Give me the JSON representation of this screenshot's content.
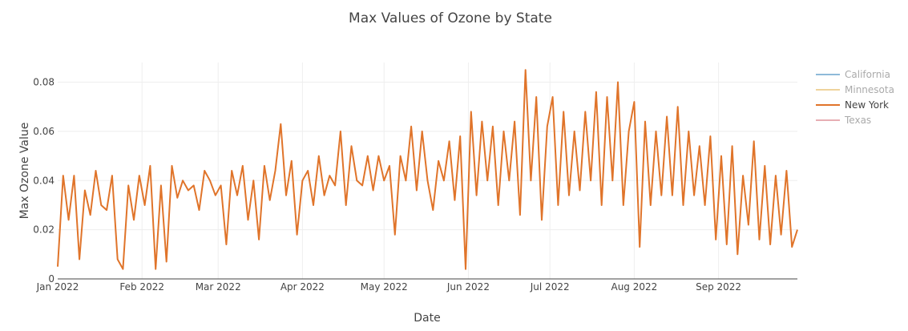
{
  "chart_data": {
    "type": "line",
    "title": "Max Values of Ozone by State",
    "xlabel": "Date",
    "ylabel": "Max Ozone Value",
    "xlim": [
      "2022-01-01",
      "2022-09-30"
    ],
    "ylim": [
      0,
      0.088
    ],
    "x_ticks": [
      {
        "date": "2022-01-01",
        "label": "Jan 2022"
      },
      {
        "date": "2022-02-01",
        "label": "Feb 2022"
      },
      {
        "date": "2022-03-01",
        "label": "Mar 2022"
      },
      {
        "date": "2022-04-01",
        "label": "Apr 2022"
      },
      {
        "date": "2022-05-01",
        "label": "May 2022"
      },
      {
        "date": "2022-06-01",
        "label": "Jun 2022"
      },
      {
        "date": "2022-07-01",
        "label": "Jul 2022"
      },
      {
        "date": "2022-08-01",
        "label": "Aug 2022"
      },
      {
        "date": "2022-09-01",
        "label": "Sep 2022"
      }
    ],
    "y_ticks": [
      {
        "value": 0,
        "label": "0"
      },
      {
        "value": 0.02,
        "label": "0.02"
      },
      {
        "value": 0.04,
        "label": "0.04"
      },
      {
        "value": 0.06,
        "label": "0.06"
      },
      {
        "value": 0.08,
        "label": "0.08"
      }
    ],
    "grid": true,
    "legend_position": "top-right",
    "series": [
      {
        "name": "California",
        "color": "#1f77b4",
        "visible": false,
        "x": [],
        "y": []
      },
      {
        "name": "Minnesota",
        "color": "#e0a93a",
        "visible": false,
        "x": [],
        "y": []
      },
      {
        "name": "New York",
        "color": "#e0742a",
        "visible": true,
        "x": [
          "2022-01-01",
          "2022-01-03",
          "2022-01-05",
          "2022-01-07",
          "2022-01-09",
          "2022-01-11",
          "2022-01-13",
          "2022-01-15",
          "2022-01-17",
          "2022-01-19",
          "2022-01-21",
          "2022-01-23",
          "2022-01-25",
          "2022-01-27",
          "2022-01-29",
          "2022-01-31",
          "2022-02-02",
          "2022-02-04",
          "2022-02-06",
          "2022-02-08",
          "2022-02-10",
          "2022-02-12",
          "2022-02-14",
          "2022-02-16",
          "2022-02-18",
          "2022-02-20",
          "2022-02-22",
          "2022-02-24",
          "2022-02-26",
          "2022-02-28",
          "2022-03-02",
          "2022-03-04",
          "2022-03-06",
          "2022-03-08",
          "2022-03-10",
          "2022-03-12",
          "2022-03-14",
          "2022-03-16",
          "2022-03-18",
          "2022-03-20",
          "2022-03-22",
          "2022-03-24",
          "2022-03-26",
          "2022-03-28",
          "2022-03-30",
          "2022-04-01",
          "2022-04-03",
          "2022-04-05",
          "2022-04-07",
          "2022-04-09",
          "2022-04-11",
          "2022-04-13",
          "2022-04-15",
          "2022-04-17",
          "2022-04-19",
          "2022-04-21",
          "2022-04-23",
          "2022-04-25",
          "2022-04-27",
          "2022-04-29",
          "2022-05-01",
          "2022-05-03",
          "2022-05-05",
          "2022-05-07",
          "2022-05-09",
          "2022-05-11",
          "2022-05-13",
          "2022-05-15",
          "2022-05-17",
          "2022-05-19",
          "2022-05-21",
          "2022-05-23",
          "2022-05-25",
          "2022-05-27",
          "2022-05-29",
          "2022-05-31",
          "2022-06-02",
          "2022-06-04",
          "2022-06-06",
          "2022-06-08",
          "2022-06-10",
          "2022-06-12",
          "2022-06-14",
          "2022-06-16",
          "2022-06-18",
          "2022-06-20",
          "2022-06-22",
          "2022-06-24",
          "2022-06-26",
          "2022-06-28",
          "2022-06-30",
          "2022-07-02",
          "2022-07-04",
          "2022-07-06",
          "2022-07-08",
          "2022-07-10",
          "2022-07-12",
          "2022-07-14",
          "2022-07-16",
          "2022-07-18",
          "2022-07-20",
          "2022-07-22",
          "2022-07-24",
          "2022-07-26",
          "2022-07-28",
          "2022-07-30",
          "2022-08-01",
          "2022-08-03",
          "2022-08-05",
          "2022-08-07",
          "2022-08-09",
          "2022-08-11",
          "2022-08-13",
          "2022-08-15",
          "2022-08-17",
          "2022-08-19",
          "2022-08-21",
          "2022-08-23",
          "2022-08-25",
          "2022-08-27",
          "2022-08-29",
          "2022-08-31",
          "2022-09-02",
          "2022-09-04",
          "2022-09-06",
          "2022-09-08",
          "2022-09-10",
          "2022-09-12",
          "2022-09-14",
          "2022-09-16",
          "2022-09-18",
          "2022-09-20",
          "2022-09-22",
          "2022-09-24",
          "2022-09-26",
          "2022-09-28",
          "2022-09-30"
        ],
        "y": [
          0.005,
          0.042,
          0.024,
          0.042,
          0.008,
          0.036,
          0.026,
          0.044,
          0.03,
          0.028,
          0.042,
          0.008,
          0.004,
          0.038,
          0.024,
          0.042,
          0.03,
          0.046,
          0.004,
          0.038,
          0.007,
          0.046,
          0.033,
          0.04,
          0.036,
          0.038,
          0.028,
          0.044,
          0.04,
          0.034,
          0.038,
          0.014,
          0.044,
          0.034,
          0.046,
          0.024,
          0.04,
          0.016,
          0.046,
          0.032,
          0.044,
          0.063,
          0.034,
          0.048,
          0.018,
          0.04,
          0.044,
          0.03,
          0.05,
          0.034,
          0.042,
          0.038,
          0.06,
          0.03,
          0.054,
          0.04,
          0.038,
          0.05,
          0.036,
          0.05,
          0.04,
          0.046,
          0.018,
          0.05,
          0.04,
          0.062,
          0.036,
          0.06,
          0.04,
          0.028,
          0.048,
          0.04,
          0.056,
          0.032,
          0.058,
          0.004,
          0.068,
          0.034,
          0.064,
          0.04,
          0.062,
          0.03,
          0.06,
          0.04,
          0.064,
          0.026,
          0.085,
          0.04,
          0.074,
          0.024,
          0.062,
          0.074,
          0.03,
          0.068,
          0.034,
          0.06,
          0.036,
          0.068,
          0.04,
          0.076,
          0.03,
          0.074,
          0.04,
          0.08,
          0.03,
          0.06,
          0.072,
          0.013,
          0.064,
          0.03,
          0.06,
          0.034,
          0.066,
          0.034,
          0.07,
          0.03,
          0.06,
          0.034,
          0.054,
          0.03,
          0.058,
          0.016,
          0.05,
          0.014,
          0.054,
          0.01,
          0.042,
          0.022,
          0.056,
          0.016,
          0.046,
          0.014,
          0.042,
          0.018,
          0.044,
          0.013,
          0.02
        ]
      },
      {
        "name": "Texas",
        "color": "#d0606a",
        "visible": false,
        "x": [],
        "y": []
      }
    ]
  }
}
